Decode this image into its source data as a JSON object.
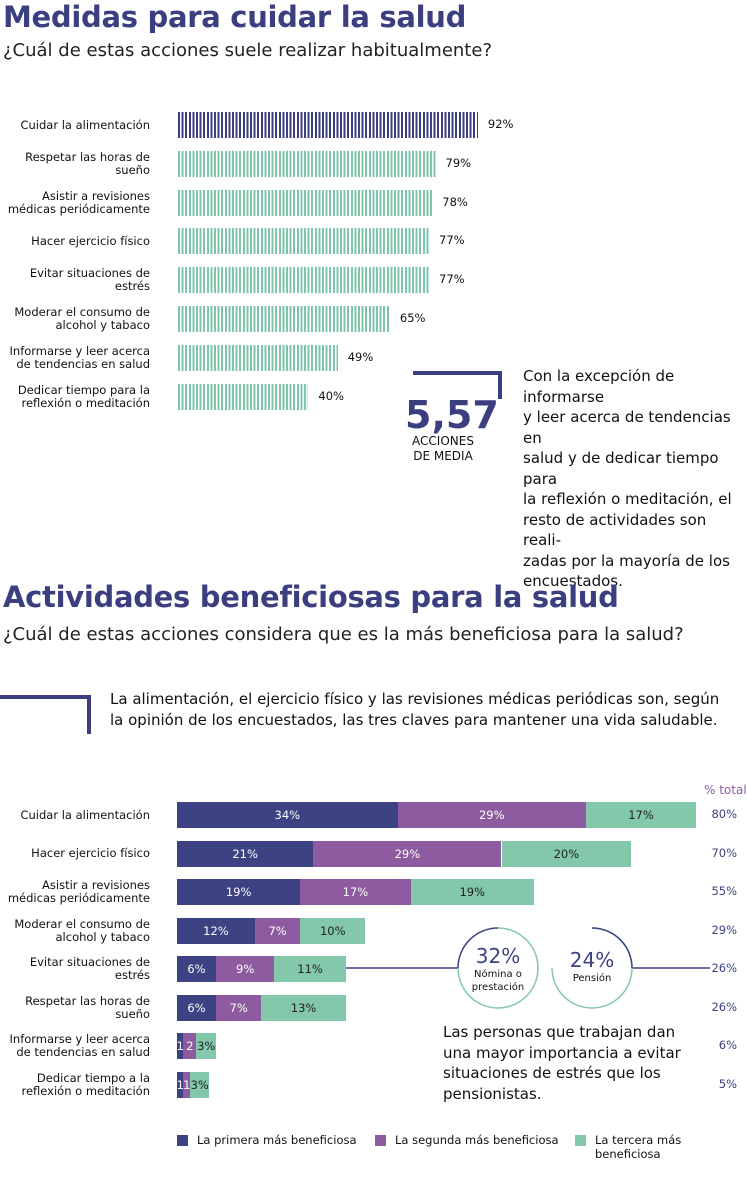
{
  "chart_data": [
    {
      "type": "bar",
      "orientation": "horizontal",
      "title": "Medidas para cuidar la salud",
      "subtitle": "¿Cuál de estas acciones suele realizar habitualmente?",
      "categories": [
        "Cuidar la alimentación",
        "Respetar las horas de\nsueño",
        "Asistir a revisiones\nmédicas periódicamente",
        "Hacer ejercicio físico",
        "Evitar situaciones de\nestrés",
        "Moderar el consumo de\nalcohol y tabaco",
        "Informarse y leer acerca\nde tendencias en salud",
        "Dedicar tiempo para la\nreflexión o meditación"
      ],
      "values": [
        92,
        79,
        78,
        77,
        77,
        65,
        49,
        40
      ],
      "value_labels": [
        "92%",
        "79%",
        "78%",
        "77%",
        "77%",
        "65%",
        "49%",
        "40%"
      ],
      "colors": [
        "#3b3f80",
        "#7dc4a8",
        "#7dc4a8",
        "#7dc4a8",
        "#7dc4a8",
        "#7dc4a8",
        "#7dc4a8",
        "#7dc4a8"
      ],
      "callout_value": "5,57",
      "callout_label": "ACCIONES\nDE MEDIA",
      "callout_text": "Con la excepción de informarse\ny leer acerca de tendencias en\nsalud y de dedicar tiempo para\nla reflexión o meditación, el\nresto de actividades son reali-\nzadas por la mayoría de  los\nencuestados."
    },
    {
      "type": "stacked_bar",
      "orientation": "horizontal",
      "title": "Actividades beneficiosas para la salud",
      "subtitle": "¿Cuál de estas acciones considera que es la más beneficiosa para la salud?",
      "intro_text": "La alimentación, el ejercicio físico y las revisiones médicas periódicas son, según\nla opinión de los encuestados, las tres claves para mantener una vida saludable.",
      "categories": [
        "Cuidar la alimentación",
        "Hacer ejercicio físico",
        "Asistir a revisiones\nmédicas periódicamente",
        "Moderar el consumo de\nalcohol y tabaco",
        "Evitar situaciones de\nestrés",
        "Respetar las horas de\nsueño",
        "Informarse y leer acerca\nde tendencias en salud",
        "Dedicar tiempo a la\nreflexión o meditación"
      ],
      "series": [
        {
          "name": "La primera más beneficiosa",
          "color": "#3c4282",
          "values": [
            34,
            21,
            19,
            12,
            6,
            6,
            1,
            1
          ],
          "value_labels": [
            "34%",
            "21%",
            "19%",
            "12%",
            "6%",
            "6%",
            "1",
            "1"
          ]
        },
        {
          "name": "La segunda más beneficiosa",
          "color": "#8e5ba0",
          "values": [
            29,
            29,
            17,
            7,
            9,
            7,
            2,
            1
          ],
          "value_labels": [
            "29%",
            "29%",
            "17%",
            "7%",
            "9%",
            "7%",
            "2",
            "1"
          ]
        },
        {
          "name": "La tercera más beneficiosa",
          "color": "#83c8ab",
          "values": [
            17,
            20,
            19,
            10,
            11,
            13,
            3,
            3
          ],
          "value_labels": [
            "17%",
            "20%",
            "19%",
            "10%",
            "11%",
            "13%",
            "3%",
            "3%"
          ]
        }
      ],
      "totals_title": "% total",
      "totals": [
        80,
        70,
        55,
        29,
        26,
        26,
        6,
        5
      ],
      "total_labels": [
        "80%",
        "70%",
        "55%",
        "29%",
        "26%",
        "26%",
        "6%",
        "5%"
      ],
      "callouts": [
        {
          "value": "32%",
          "label": "Nómina o\nprestación"
        },
        {
          "value": "24%",
          "label": "Pensión"
        }
      ],
      "note": "Las personas que trabajan dan\nuna mayor importancia a evitar\nsituaciones de estrés que los\npensionistas.",
      "legend": "bottom"
    }
  ]
}
